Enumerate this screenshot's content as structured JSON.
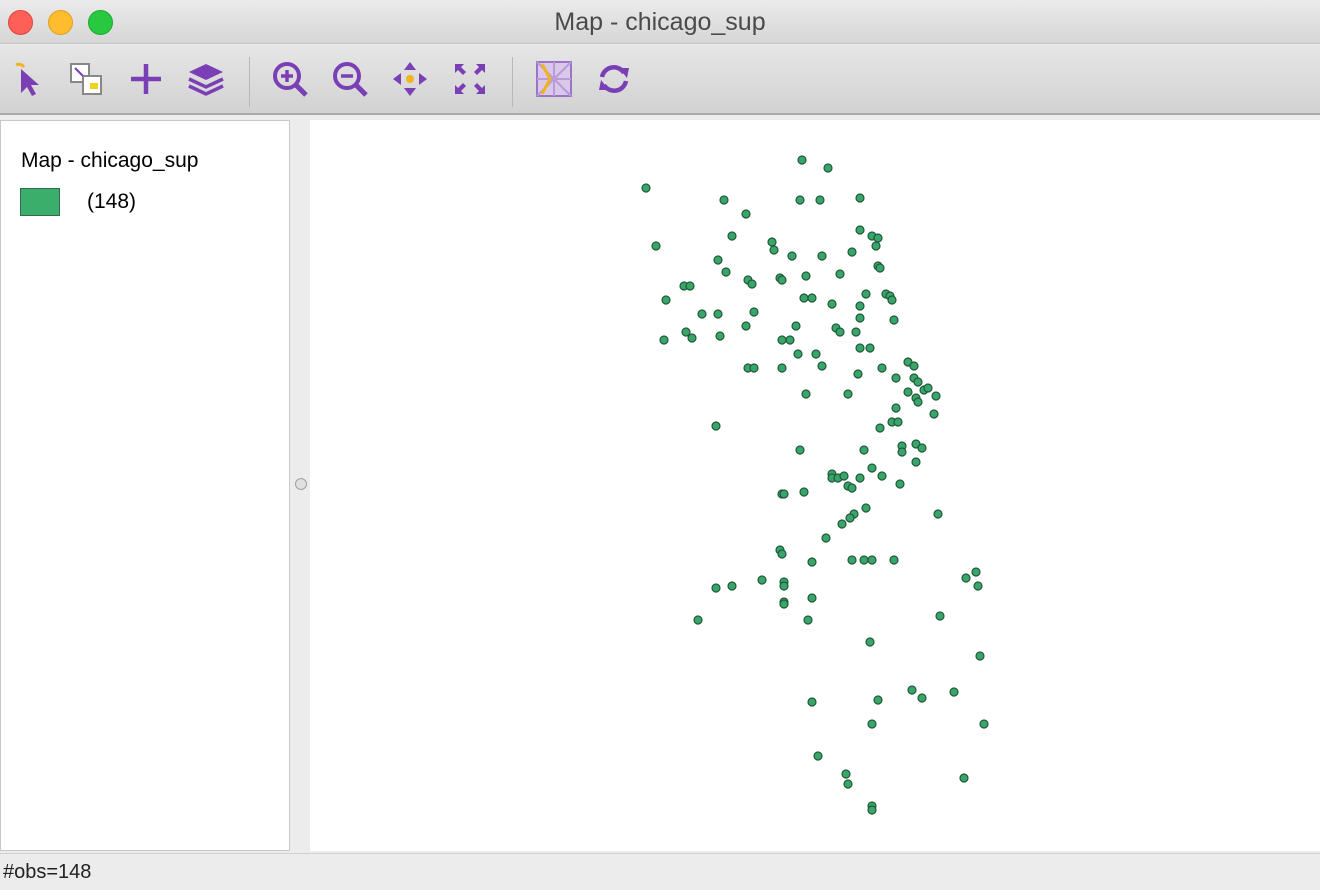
{
  "window": {
    "title": "Map - chicago_sup"
  },
  "toolbar": {
    "tools": [
      {
        "name": "select-tool",
        "icon": "select-arrow-icon"
      },
      {
        "name": "selection-shape-tool",
        "icon": "selection-shape-icon"
      },
      {
        "name": "add-tool",
        "icon": "plus-icon"
      },
      {
        "name": "layers-tool",
        "icon": "layers-icon"
      },
      {
        "name": "zoom-in-tool",
        "icon": "zoom-in-icon"
      },
      {
        "name": "zoom-out-tool",
        "icon": "zoom-out-icon"
      },
      {
        "name": "pan-tool",
        "icon": "pan-icon"
      },
      {
        "name": "full-extent-tool",
        "icon": "full-extent-icon"
      },
      {
        "name": "basemap-tool",
        "icon": "basemap-icon"
      },
      {
        "name": "refresh-tool",
        "icon": "refresh-icon"
      }
    ],
    "accent_color": "#7b3fb5"
  },
  "legend": {
    "title": "Map - chicago_sup",
    "items": [
      {
        "label": "(148)",
        "color": "#3aae6a"
      }
    ]
  },
  "map": {
    "point_color": "#3aa56a",
    "point_count": 148
  },
  "status": {
    "text": "#obs=148"
  }
}
